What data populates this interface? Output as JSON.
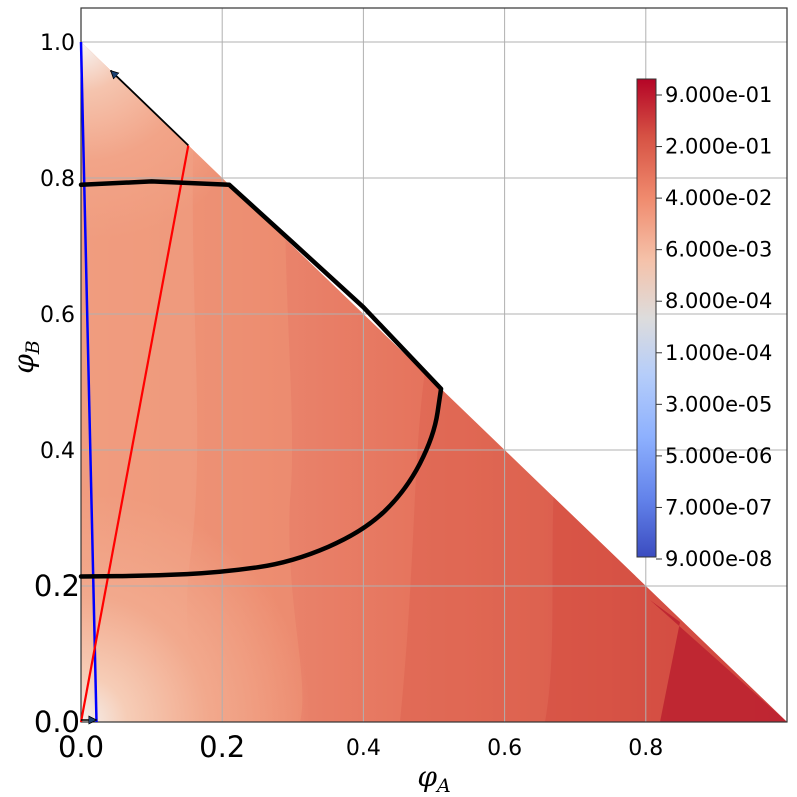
{
  "chart_data": {
    "type": "contour",
    "xlabel": "φA",
    "ylabel": "φB",
    "xlim": [
      0,
      1.0
    ],
    "ylim": [
      0,
      1.05
    ],
    "x_ticks": [
      "0.0",
      "0.2",
      "0.4",
      "0.6",
      "0.8"
    ],
    "x_tick_values": [
      0,
      0.2,
      0.4,
      0.6,
      0.8
    ],
    "y_ticks": [
      "0.0",
      "0.2",
      "0.4",
      "0.6",
      "0.8",
      "1.0"
    ],
    "y_tick_values": [
      0,
      0.2,
      0.4,
      0.6,
      0.8,
      1.0
    ],
    "grid": true,
    "colorbar": {
      "labels": [
        "9.000e-01",
        "2.000e-01",
        "4.000e-02",
        "6.000e-03",
        "8.000e-04",
        "1.000e-04",
        "3.000e-05",
        "5.000e-06",
        "7.000e-07",
        "9.000e-08"
      ],
      "colormap": [
        "#b40426",
        "#d65244",
        "#f08b6e",
        "#f5c2aa",
        "#dddcdc",
        "#b5cdfa",
        "#8db0fe",
        "#6282ea",
        "#3b4cc0"
      ]
    },
    "boundary_curve": {
      "color": "#000000",
      "points": [
        [
          0.0,
          0.79
        ],
        [
          0.1,
          0.795
        ],
        [
          0.21,
          0.79
        ],
        [
          0.3,
          0.705
        ],
        [
          0.4,
          0.61
        ],
        [
          0.51,
          0.49
        ],
        [
          0.5,
          0.42
        ],
        [
          0.46,
          0.34
        ],
        [
          0.4,
          0.28
        ],
        [
          0.3,
          0.235
        ],
        [
          0.2,
          0.22
        ],
        [
          0.1,
          0.215
        ],
        [
          0.0,
          0.214
        ]
      ]
    },
    "red_line": {
      "color": "#ff0000",
      "points": [
        [
          0.0,
          0.0
        ],
        [
          0.152,
          0.848
        ]
      ]
    },
    "blue_line": {
      "color": "#0000ff",
      "points": [
        [
          0.0,
          1.0
        ],
        [
          0.022,
          0.0
        ]
      ]
    },
    "arrow": {
      "color": "#000000",
      "from": [
        0.152,
        0.848
      ],
      "to": [
        0.042,
        0.958
      ]
    },
    "small_arrow": {
      "color": "#000000",
      "from": [
        0.0,
        0.0
      ],
      "to": [
        0.022,
        0.0
      ]
    }
  }
}
